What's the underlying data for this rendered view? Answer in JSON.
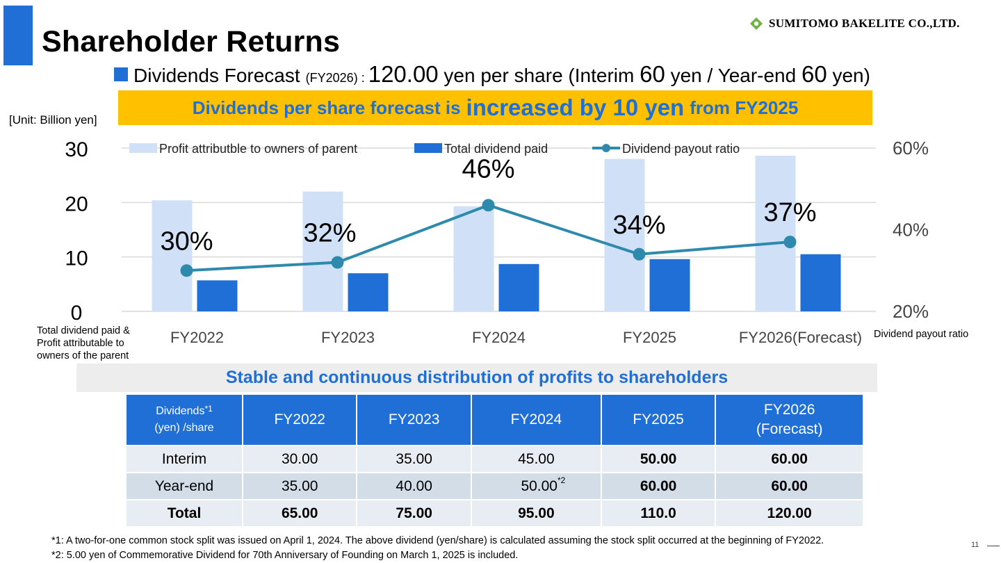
{
  "title": "Shareholder Returns",
  "company": "SUMITOMO BAKELITE CO.,LTD.",
  "forecast": {
    "label": "Dividends Forecast",
    "fy": "(FY2026)",
    "colon": " : ",
    "amount": "120.00",
    "per_share": " yen per share (Interim ",
    "interim": "60",
    "mid": " yen / Year-end ",
    "yearend": "60",
    "end": " yen)"
  },
  "banner": {
    "pre": "Dividends per share forecast is",
    "big": "increased by 10 yen",
    "post": "from FY2025"
  },
  "unit_label": "[Unit: Billion yen]",
  "left_axis_note": [
    "Total dividend paid &",
    "Profit attributable to",
    "owners of the parent"
  ],
  "right_axis_note": "Dividend payout ratio",
  "chart_data": {
    "type": "bar",
    "categories": [
      "FY2022",
      "FY2023",
      "FY2024",
      "FY2025",
      "FY2026(Forecast)"
    ],
    "series": [
      {
        "name": "Profit attributble to owners of parent",
        "type": "bar",
        "axis": "left",
        "color": "#cfe0f7",
        "values": [
          20.4,
          22.0,
          19.3,
          28.0,
          28.6
        ]
      },
      {
        "name": "Total dividend paid",
        "type": "bar",
        "axis": "left",
        "color": "#1f6fd6",
        "values": [
          5.7,
          7.0,
          8.7,
          9.6,
          10.5
        ]
      },
      {
        "name": "Dividend payout ratio",
        "type": "line",
        "axis": "right",
        "color": "#2e8aad",
        "values": [
          30,
          32,
          46,
          34,
          37
        ],
        "labels": [
          "30%",
          "32%",
          "46%",
          "34%",
          "37%"
        ]
      }
    ],
    "y_left": {
      "ticks": [
        "0",
        "10",
        "20",
        "30"
      ],
      "range": [
        0,
        30
      ]
    },
    "y_right": {
      "ticks": [
        "20%",
        "40%",
        "60%"
      ],
      "range": [
        20,
        60
      ]
    },
    "grid": true,
    "legend": "top"
  },
  "subtitle": "Stable and continuous distribution of profits to shareholders",
  "table": {
    "corner": [
      "Dividends",
      "*1",
      "(yen) /share"
    ],
    "headers": [
      "FY2022",
      "FY2023",
      "FY2024",
      "FY2025"
    ],
    "header_last": [
      "FY2026",
      "(Forecast)"
    ],
    "rows": [
      {
        "label": "Interim",
        "values": [
          "30.00",
          "35.00",
          "45.00",
          "50.00",
          "60.00"
        ]
      },
      {
        "label": "Year-end",
        "values": [
          "35.00",
          "40.00",
          "50.00",
          "60.00",
          "60.00"
        ],
        "note_on_fy2024": "*2"
      },
      {
        "label": "Total",
        "values": [
          "65.00",
          "75.00",
          "95.00",
          "110.0",
          "120.00"
        ]
      }
    ]
  },
  "footnotes": [
    "*1: A two-for-one common stock split was issued on April 1, 2024. The above dividend (yen/share) is calculated assuming the stock split occurred at the beginning of FY2022.",
    "*2: 5.00 yen of Commemorative Dividend for 70th Anniversary of Founding on March 1, 2025 is included."
  ],
  "page_number": "11"
}
